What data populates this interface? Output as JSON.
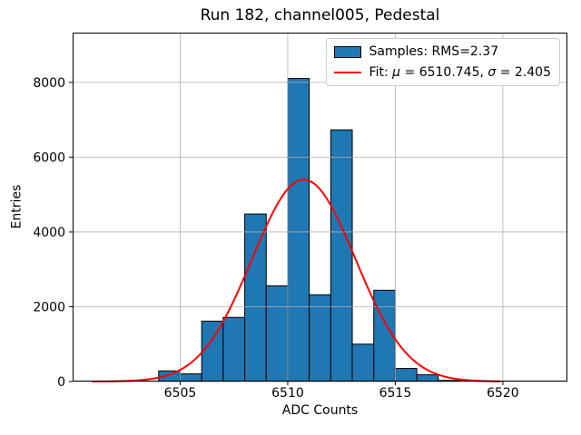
{
  "chart_data": {
    "type": "bar",
    "subtype": "histogram-with-gaussian-fit",
    "title": "Run 182, channel005, Pedestal",
    "xlabel": "ADC Counts",
    "ylabel": "Entries",
    "xlim": [
      6500,
      6523
    ],
    "ylim": [
      0,
      9330
    ],
    "xticks": [
      6505,
      6510,
      6515,
      6520
    ],
    "yticks": [
      0,
      2000,
      4000,
      6000,
      8000
    ],
    "grid": true,
    "legend_position": "upper right",
    "series": [
      {
        "name": "Samples: RMS=2.37",
        "kind": "histogram-bars",
        "bin_width": 1,
        "bin_left_edges": [
          6504,
          6505,
          6506,
          6507,
          6508,
          6509,
          6510,
          6511,
          6512,
          6513,
          6514,
          6515,
          6516,
          6517
        ],
        "counts": [
          285,
          205,
          1615,
          1715,
          4480,
          2560,
          8105,
          2320,
          6730,
          1000,
          2440,
          350,
          180,
          30
        ]
      },
      {
        "name": "Fit: μ = 6510.745, σ = 2.405",
        "kind": "gaussian-line",
        "mu": 6510.745,
        "sigma": 2.405,
        "peak": 5400,
        "x_start": 6500.9,
        "x_end": 6519.9
      }
    ]
  },
  "legend": {
    "items": [
      {
        "swatch": "bar-patch",
        "label": "Samples: RMS=2.37"
      },
      {
        "swatch": "red-line",
        "label_parts": [
          {
            "text": "Fit: "
          },
          {
            "text": "μ",
            "italic": true
          },
          {
            "text": " = 6510.745, "
          },
          {
            "text": "σ",
            "italic": true
          },
          {
            "text": " = 2.405"
          }
        ]
      }
    ]
  },
  "colors": {
    "bar_fill": "#1f77b4",
    "bar_edge": "#000000",
    "fit_line": "#ff0000",
    "grid": "#b0b0b0",
    "spine": "#000000",
    "tick": "#000000",
    "background": "#ffffff",
    "legend_border": "#cccccc"
  }
}
